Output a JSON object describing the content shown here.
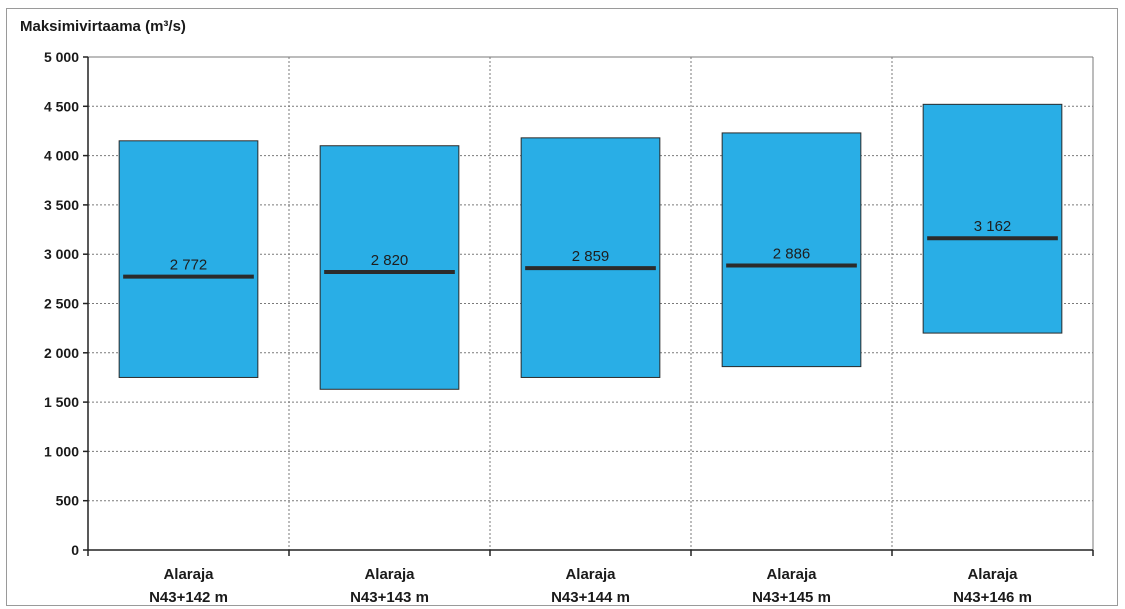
{
  "chart_data": {
    "type": "range-bar",
    "ylabel": "Maksimivirtaama (m³/s)",
    "ylim": [
      0,
      5000
    ],
    "y_ticks": [
      {
        "value": 0,
        "label": "0"
      },
      {
        "value": 500,
        "label": "500"
      },
      {
        "value": 1000,
        "label": "1 000"
      },
      {
        "value": 1500,
        "label": "1 500"
      },
      {
        "value": 2000,
        "label": "2 000"
      },
      {
        "value": 2500,
        "label": "2 500"
      },
      {
        "value": 3000,
        "label": "3 000"
      },
      {
        "value": 3500,
        "label": "3 500"
      },
      {
        "value": 4000,
        "label": "4 000"
      },
      {
        "value": 4500,
        "label": "4 500"
      },
      {
        "value": 5000,
        "label": "5 000"
      }
    ],
    "categories": [
      {
        "line1": "Alaraja",
        "line2": "N43+142 m"
      },
      {
        "line1": "Alaraja",
        "line2": "N43+143 m"
      },
      {
        "line1": "Alaraja",
        "line2": "N43+144 m"
      },
      {
        "line1": "Alaraja",
        "line2": "N43+145 m"
      },
      {
        "line1": "Alaraja",
        "line2": "N43+146 m"
      }
    ],
    "ranges": [
      {
        "low": 1750,
        "high": 4150
      },
      {
        "low": 1630,
        "high": 4100
      },
      {
        "low": 1750,
        "high": 4180
      },
      {
        "low": 1860,
        "high": 4230
      },
      {
        "low": 2200,
        "high": 4520
      }
    ],
    "values": [
      2772,
      2820,
      2859,
      2886,
      3162
    ],
    "value_labels": [
      "2 772",
      "2 820",
      "2 859",
      "2 886",
      "3 162"
    ],
    "grid": true,
    "colors": {
      "box": "#29aee6",
      "box_border": "#2a2a2a",
      "marker": "#2b2b2b",
      "grid": "#7a7a7a"
    }
  }
}
